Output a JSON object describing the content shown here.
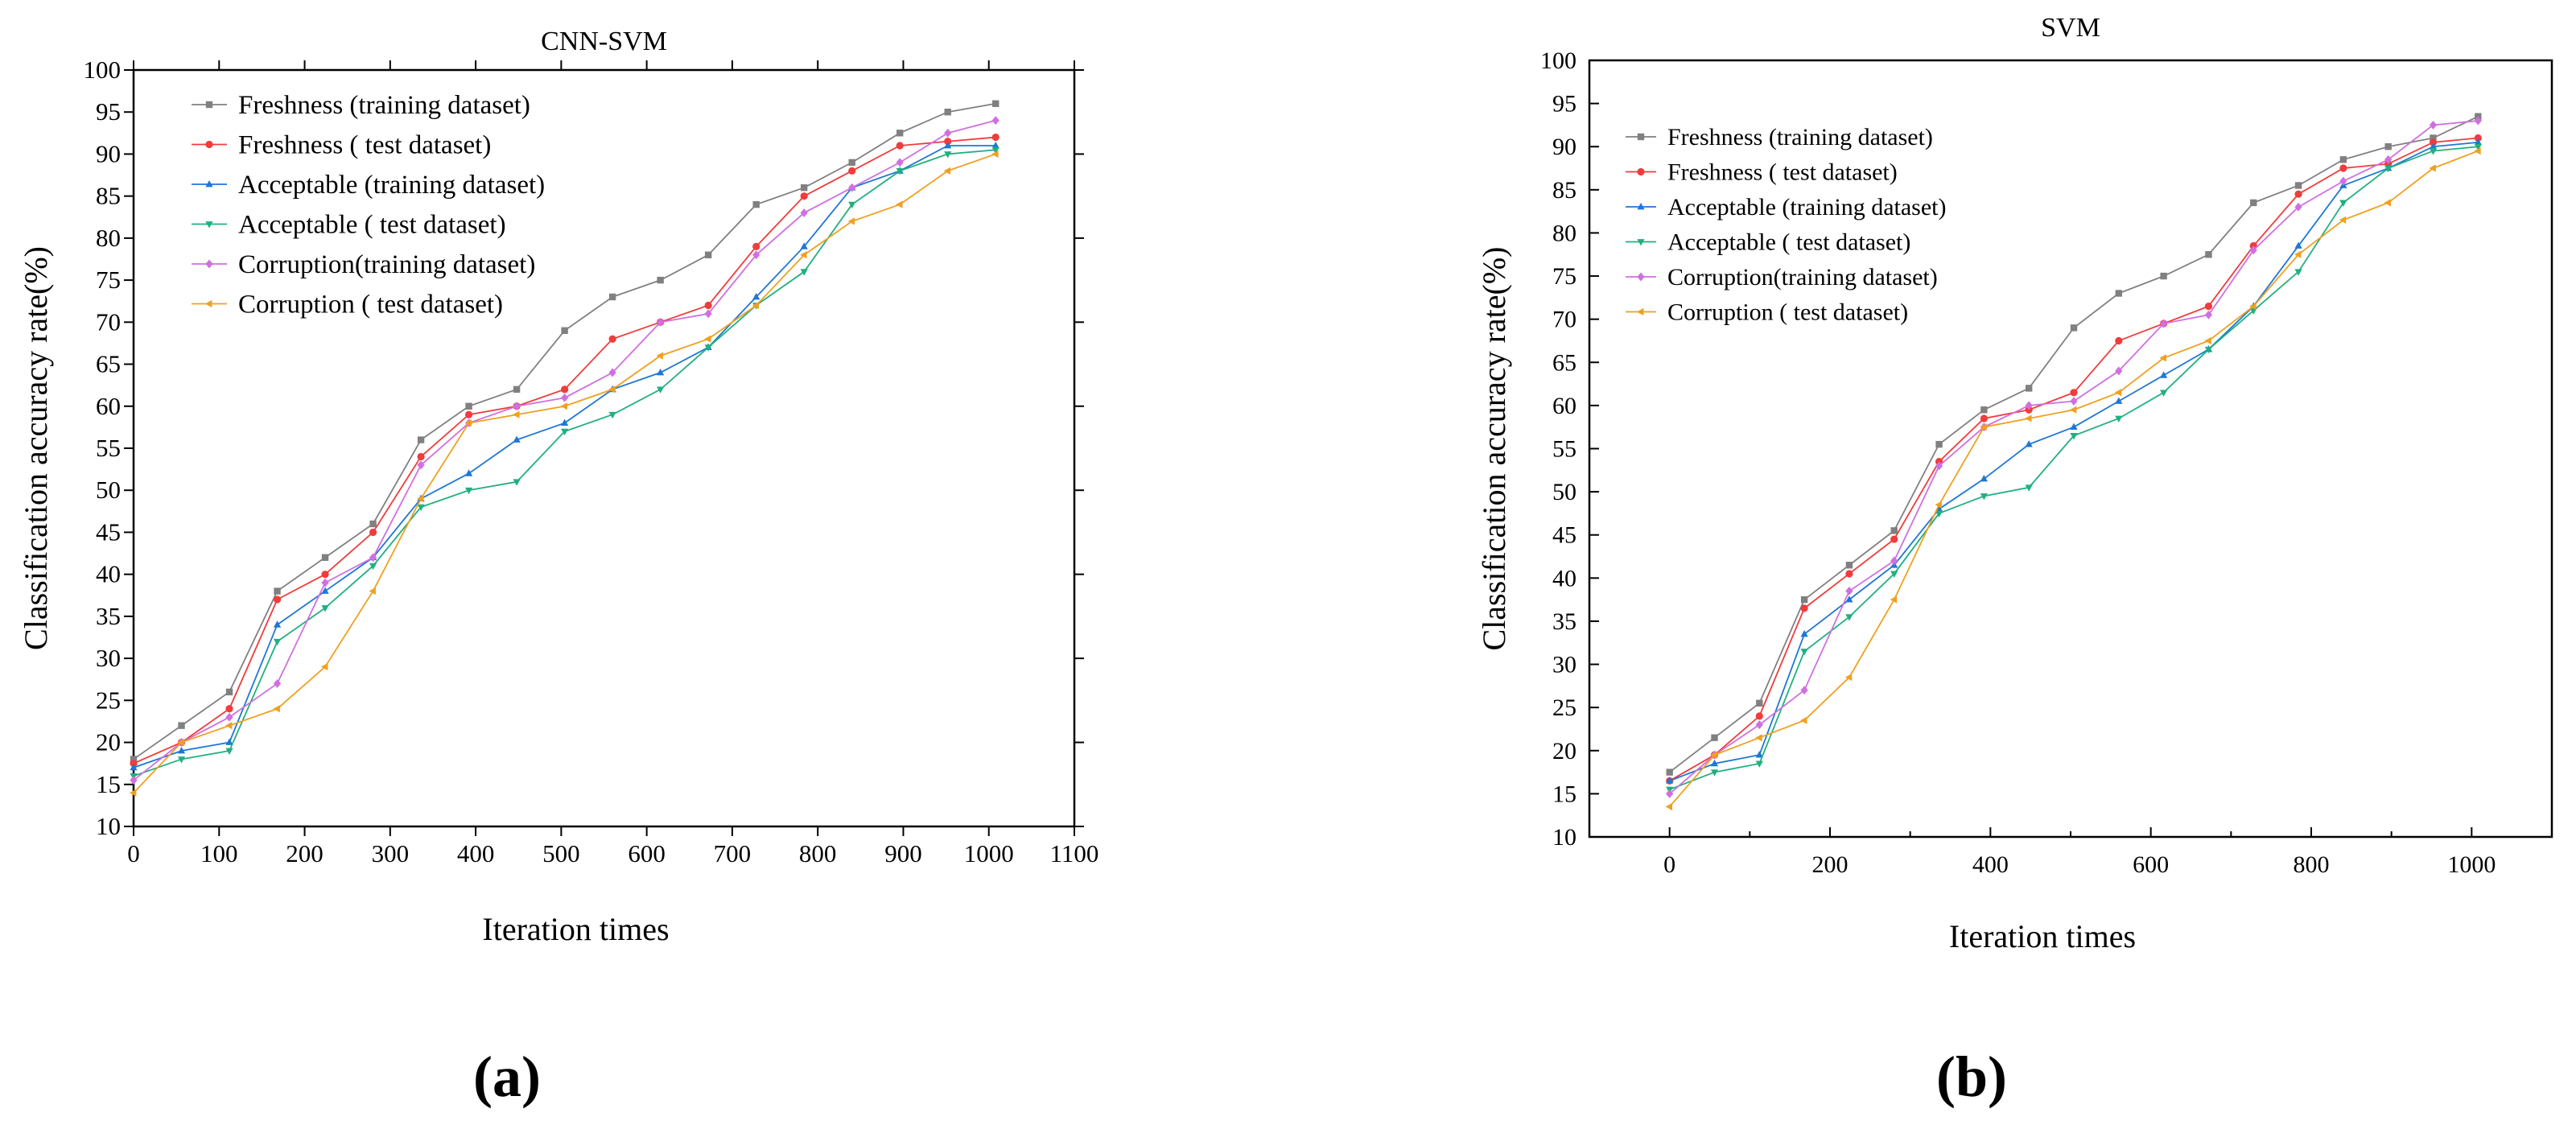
{
  "chart_data": [
    {
      "type": "line",
      "panel_label": "(a)",
      "title": "CNN-SVM",
      "xlabel": "Iteration times",
      "ylabel": "Classification accuracy rate(%)",
      "xlim": [
        0,
        1100
      ],
      "ylim": [
        10,
        100
      ],
      "xticks": [
        0,
        100,
        200,
        300,
        400,
        500,
        600,
        700,
        800,
        900,
        1000,
        1100
      ],
      "yticks": [
        10,
        15,
        20,
        25,
        30,
        35,
        40,
        45,
        50,
        55,
        60,
        65,
        70,
        75,
        80,
        85,
        90,
        95,
        100
      ],
      "legend_position": "top-left",
      "x": [
        0,
        56,
        112,
        168,
        224,
        280,
        336,
        392,
        448,
        504,
        560,
        616,
        672,
        728,
        784,
        840,
        896,
        952,
        1008
      ],
      "series": [
        {
          "name": "Freshness (training dataset)",
          "color": "#808080",
          "marker": "square",
          "values": [
            18,
            22,
            26,
            38,
            42,
            46,
            56,
            60,
            62,
            69,
            73,
            75,
            78,
            84,
            86,
            89,
            92.5,
            95,
            96
          ]
        },
        {
          "name": "Freshness ( test dataset)",
          "color": "#f03c3c",
          "marker": "circle",
          "values": [
            17.5,
            20,
            24,
            37,
            40,
            45,
            54,
            59,
            60,
            62,
            68,
            70,
            72,
            79,
            85,
            88,
            91,
            91.5,
            92
          ]
        },
        {
          "name": "Acceptable (training dataset)",
          "color": "#1f77d4",
          "marker": "triangle-up",
          "values": [
            17,
            19,
            20,
            34,
            38,
            42,
            49,
            52,
            56,
            58,
            62,
            64,
            67,
            73,
            79,
            86,
            88,
            91,
            91
          ]
        },
        {
          "name": "Acceptable ( test dataset)",
          "color": "#20b080",
          "marker": "triangle-down",
          "values": [
            16,
            18,
            19,
            32,
            36,
            41,
            48,
            50,
            51,
            57,
            59,
            62,
            67,
            72,
            76,
            84,
            88,
            90,
            90.5
          ]
        },
        {
          "name": "Corruption(training dataset)",
          "color": "#d070e0",
          "marker": "diamond",
          "values": [
            15.5,
            20,
            23,
            27,
            39,
            42,
            53,
            58,
            60,
            61,
            64,
            70,
            71,
            78,
            83,
            86,
            89,
            92.5,
            94
          ]
        },
        {
          "name": "Corruption ( test dataset)",
          "color": "#f0a020",
          "marker": "triangle-left",
          "values": [
            14,
            20,
            22,
            24,
            29,
            38,
            49,
            58,
            59,
            60,
            62,
            66,
            68,
            72,
            78,
            82,
            84,
            88,
            90
          ]
        }
      ]
    },
    {
      "type": "line",
      "panel_label": "(b)",
      "title": "SVM",
      "xlabel": "Iteration times",
      "ylabel": "Classification accuracy rate(%)",
      "xlim": [
        -100,
        1100
      ],
      "ylim": [
        10,
        100
      ],
      "xticks": [
        0,
        200,
        400,
        600,
        800,
        1000
      ],
      "yticks": [
        10,
        15,
        20,
        25,
        30,
        35,
        40,
        45,
        50,
        55,
        60,
        65,
        70,
        75,
        80,
        85,
        90,
        95,
        100
      ],
      "legend_position": "top-left",
      "x": [
        0,
        56,
        112,
        168,
        224,
        280,
        336,
        392,
        448,
        504,
        560,
        616,
        672,
        728,
        784,
        840,
        896,
        952,
        1008
      ],
      "series": [
        {
          "name": "Freshness (training dataset)",
          "color": "#808080",
          "marker": "square",
          "values": [
            17.5,
            21.5,
            25.5,
            37.5,
            41.5,
            45.5,
            55.5,
            59.5,
            62,
            69,
            73,
            75,
            77.5,
            83.5,
            85.5,
            88.5,
            90,
            91,
            93.5
          ]
        },
        {
          "name": "Freshness ( test dataset)",
          "color": "#f03c3c",
          "marker": "circle",
          "values": [
            16.5,
            19.5,
            24,
            36.5,
            40.5,
            44.5,
            53.5,
            58.5,
            59.5,
            61.5,
            67.5,
            69.5,
            71.5,
            78.5,
            84.5,
            87.5,
            88,
            90.5,
            91
          ]
        },
        {
          "name": "Acceptable (training dataset)",
          "color": "#1f77d4",
          "marker": "triangle-up",
          "values": [
            16.5,
            18.5,
            19.5,
            33.5,
            37.5,
            41.5,
            48,
            51.5,
            55.5,
            57.5,
            60.5,
            63.5,
            66.5,
            71.5,
            78.5,
            85.5,
            87.5,
            90,
            90.5
          ]
        },
        {
          "name": "Acceptable ( test dataset)",
          "color": "#20b080",
          "marker": "triangle-down",
          "values": [
            15.5,
            17.5,
            18.5,
            31.5,
            35.5,
            40.5,
            47.5,
            49.5,
            50.5,
            56.5,
            58.5,
            61.5,
            66.5,
            71,
            75.5,
            83.5,
            87.5,
            89.5,
            90
          ]
        },
        {
          "name": "Corruption(training dataset)",
          "color": "#d070e0",
          "marker": "diamond",
          "values": [
            15,
            19.5,
            23,
            27,
            38.5,
            42,
            53,
            57.5,
            60,
            60.5,
            64,
            69.5,
            70.5,
            78,
            83,
            86,
            88.5,
            92.5,
            93
          ]
        },
        {
          "name": "Corruption ( test dataset)",
          "color": "#f0a020",
          "marker": "triangle-left",
          "values": [
            13.5,
            19.5,
            21.5,
            23.5,
            28.5,
            37.5,
            48.5,
            57.5,
            58.5,
            59.5,
            61.5,
            65.5,
            67.5,
            71.5,
            77.5,
            81.5,
            83.5,
            87.5,
            89.5
          ]
        }
      ]
    }
  ]
}
